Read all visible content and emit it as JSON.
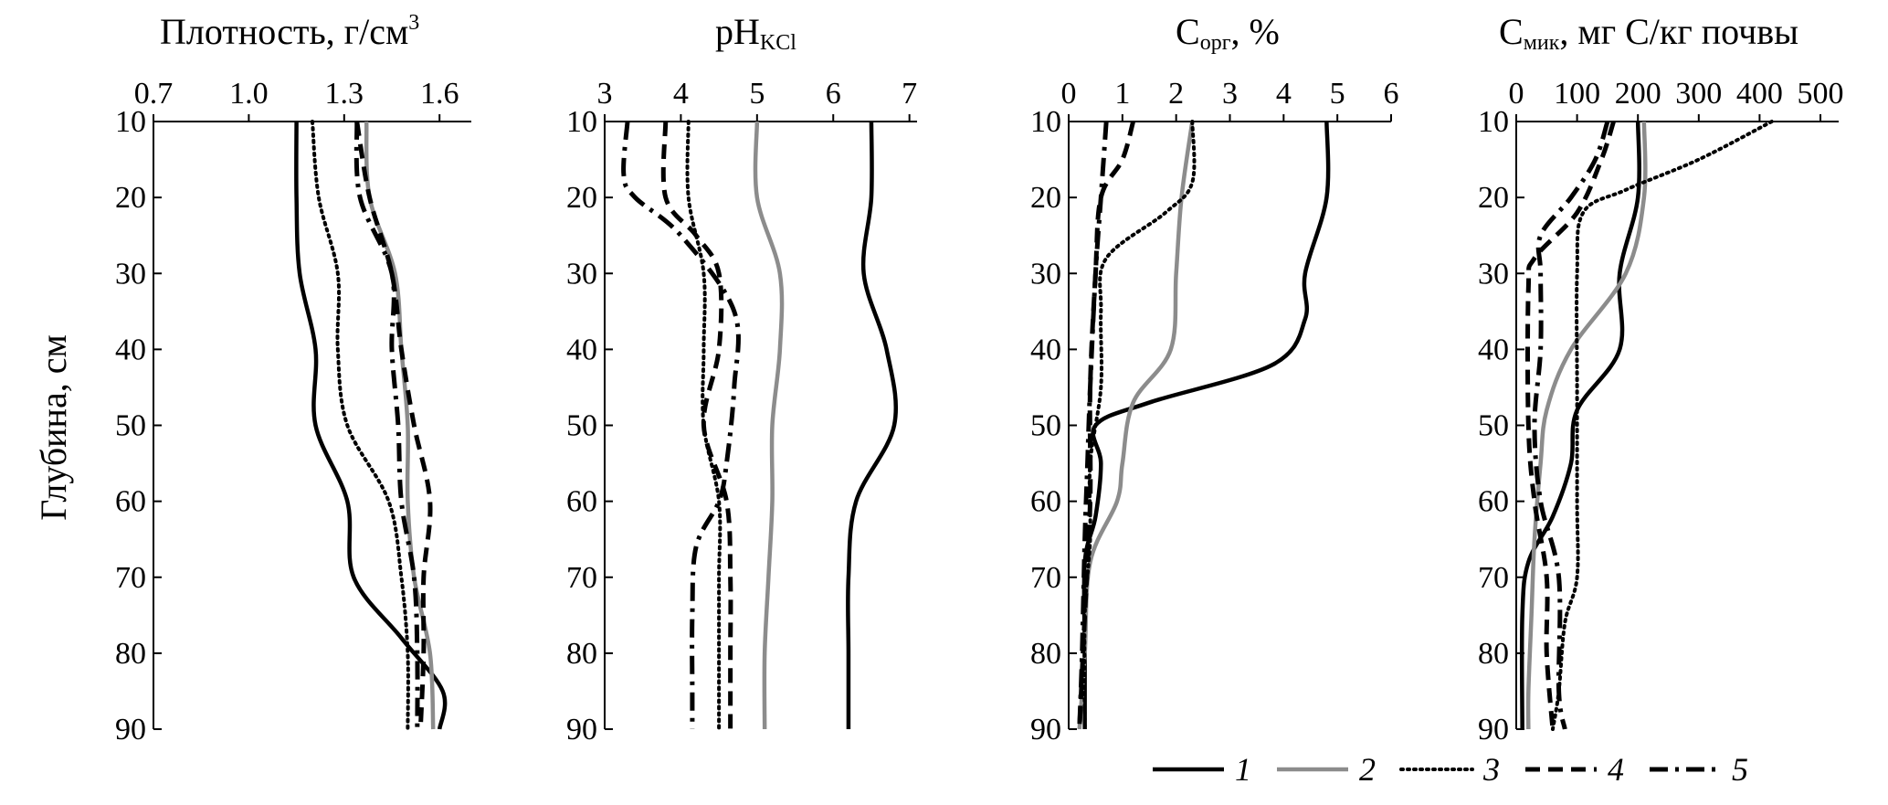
{
  "panels": [
    {
      "id": "density",
      "title_main": "Плотность, г/см",
      "title_sup": "3",
      "x_ticks": [
        "0.7",
        "1.0",
        "1.3",
        "1.6"
      ],
      "xlim": [
        0.7,
        1.7
      ],
      "tick_values": [
        0.7,
        1.0,
        1.3,
        1.6
      ]
    },
    {
      "id": "ph",
      "title_main": "pH",
      "title_sub": "KCl",
      "x_ticks": [
        "3",
        "4",
        "5",
        "6",
        "7"
      ],
      "xlim": [
        3,
        7.1
      ],
      "tick_values": [
        3,
        4,
        5,
        6,
        7
      ]
    },
    {
      "id": "corg",
      "title_main": "C",
      "title_sub": "орг",
      "title_after": ", %",
      "x_ticks": [
        "0",
        "1",
        "2",
        "3",
        "4",
        "5",
        "6"
      ],
      "xlim": [
        0,
        6
      ],
      "tick_values": [
        0,
        1,
        2,
        3,
        4,
        5,
        6
      ]
    },
    {
      "id": "cmic",
      "title_main": "C",
      "title_sub": "мик",
      "title_after": ", мг C/кг почвы",
      "x_ticks": [
        "0",
        "100",
        "200",
        "300",
        "400",
        "500"
      ],
      "xlim": [
        0,
        530
      ],
      "tick_values": [
        0,
        100,
        200,
        300,
        400,
        500
      ]
    }
  ],
  "y_axis": {
    "label": "Глубина, см",
    "ticks": [
      "10",
      "20",
      "30",
      "40",
      "50",
      "60",
      "70",
      "80",
      "90"
    ],
    "tick_values": [
      10,
      20,
      30,
      40,
      50,
      60,
      70,
      80,
      90
    ],
    "ylim": [
      10,
      90
    ],
    "inverted": true
  },
  "legend": [
    {
      "label": "1",
      "style": "solid",
      "color": "#000000"
    },
    {
      "label": "2",
      "style": "solid",
      "color": "#8c8c8c"
    },
    {
      "label": "3",
      "style": "dotted",
      "color": "#000000"
    },
    {
      "label": "4",
      "style": "dashed",
      "color": "#000000"
    },
    {
      "label": "5",
      "style": "dashdot",
      "color": "#000000"
    }
  ],
  "chart_data": [
    {
      "type": "line",
      "panel": "density",
      "xlabel": "Плотность, г/см3",
      "ylabel": "Глубина, см",
      "series": [
        {
          "name": "1",
          "points": [
            [
              1.15,
              10
            ],
            [
              1.15,
              20
            ],
            [
              1.16,
              30
            ],
            [
              1.21,
              40
            ],
            [
              1.21,
              50
            ],
            [
              1.31,
              60
            ],
            [
              1.33,
              70
            ],
            [
              1.48,
              78
            ],
            [
              1.61,
              85
            ],
            [
              1.6,
              90
            ]
          ]
        },
        {
          "name": "2",
          "points": [
            [
              1.37,
              10
            ],
            [
              1.38,
              20
            ],
            [
              1.46,
              30
            ],
            [
              1.48,
              40
            ],
            [
              1.5,
              50
            ],
            [
              1.5,
              60
            ],
            [
              1.52,
              70
            ],
            [
              1.57,
              80
            ],
            [
              1.58,
              90
            ]
          ]
        },
        {
          "name": "3",
          "points": [
            [
              1.2,
              10
            ],
            [
              1.22,
              20
            ],
            [
              1.28,
              30
            ],
            [
              1.28,
              40
            ],
            [
              1.31,
              50
            ],
            [
              1.44,
              60
            ],
            [
              1.48,
              70
            ],
            [
              1.5,
              80
            ],
            [
              1.5,
              90
            ]
          ]
        },
        {
          "name": "4",
          "points": [
            [
              1.34,
              10
            ],
            [
              1.38,
              20
            ],
            [
              1.45,
              30
            ],
            [
              1.48,
              40
            ],
            [
              1.52,
              50
            ],
            [
              1.57,
              60
            ],
            [
              1.55,
              70
            ],
            [
              1.55,
              80
            ],
            [
              1.54,
              90
            ]
          ]
        },
        {
          "name": "5",
          "points": [
            [
              1.34,
              10
            ],
            [
              1.35,
              20
            ],
            [
              1.45,
              30
            ],
            [
              1.45,
              40
            ],
            [
              1.47,
              50
            ],
            [
              1.48,
              60
            ],
            [
              1.52,
              70
            ],
            [
              1.53,
              80
            ],
            [
              1.53,
              90
            ]
          ]
        }
      ]
    },
    {
      "type": "line",
      "panel": "ph",
      "xlabel": "pHKCl",
      "ylabel": "Глубина, см",
      "series": [
        {
          "name": "1",
          "points": [
            [
              6.5,
              10
            ],
            [
              6.5,
              20
            ],
            [
              6.4,
              30
            ],
            [
              6.7,
              40
            ],
            [
              6.8,
              50
            ],
            [
              6.3,
              60
            ],
            [
              6.2,
              70
            ],
            [
              6.2,
              80
            ],
            [
              6.2,
              90
            ]
          ]
        },
        {
          "name": "2",
          "points": [
            [
              5.0,
              10
            ],
            [
              5.0,
              20
            ],
            [
              5.3,
              30
            ],
            [
              5.3,
              40
            ],
            [
              5.2,
              50
            ],
            [
              5.2,
              60
            ],
            [
              5.15,
              70
            ],
            [
              5.1,
              80
            ],
            [
              5.1,
              90
            ]
          ]
        },
        {
          "name": "3",
          "points": [
            [
              4.1,
              10
            ],
            [
              4.1,
              20
            ],
            [
              4.3,
              30
            ],
            [
              4.3,
              40
            ],
            [
              4.3,
              50
            ],
            [
              4.5,
              60
            ],
            [
              4.5,
              70
            ],
            [
              4.5,
              80
            ],
            [
              4.5,
              90
            ]
          ]
        },
        {
          "name": "4",
          "points": [
            [
              3.8,
              10
            ],
            [
              3.8,
              20
            ],
            [
              4.2,
              25
            ],
            [
              4.5,
              30
            ],
            [
              4.5,
              40
            ],
            [
              4.3,
              50
            ],
            [
              4.6,
              60
            ],
            [
              4.65,
              70
            ],
            [
              4.65,
              80
            ],
            [
              4.65,
              90
            ]
          ]
        },
        {
          "name": "5",
          "points": [
            [
              3.3,
              10
            ],
            [
              3.25,
              17
            ],
            [
              3.4,
              20
            ],
            [
              4.0,
              25
            ],
            [
              4.7,
              35
            ],
            [
              4.7,
              45
            ],
            [
              4.6,
              55
            ],
            [
              4.5,
              60
            ],
            [
              4.2,
              66
            ],
            [
              4.15,
              75
            ],
            [
              4.15,
              85
            ],
            [
              4.15,
              90
            ]
          ]
        }
      ]
    },
    {
      "type": "line",
      "panel": "corg",
      "xlabel": "Cорг, %",
      "ylabel": "Глубина, см",
      "series": [
        {
          "name": "1",
          "points": [
            [
              4.8,
              10
            ],
            [
              4.8,
              20
            ],
            [
              4.4,
              30
            ],
            [
              4.4,
              36
            ],
            [
              3.8,
              42
            ],
            [
              1.5,
              47
            ],
            [
              0.5,
              50
            ],
            [
              0.6,
              55
            ],
            [
              0.5,
              62
            ],
            [
              0.3,
              68
            ],
            [
              0.3,
              80
            ],
            [
              0.3,
              90
            ]
          ]
        },
        {
          "name": "2",
          "points": [
            [
              2.3,
              10
            ],
            [
              2.1,
              20
            ],
            [
              2.0,
              30
            ],
            [
              1.9,
              40
            ],
            [
              1.2,
              47
            ],
            [
              1.0,
              55
            ],
            [
              0.9,
              60
            ],
            [
              0.4,
              68
            ],
            [
              0.3,
              80
            ],
            [
              0.2,
              90
            ]
          ]
        },
        {
          "name": "3",
          "points": [
            [
              2.3,
              10
            ],
            [
              2.3,
              18
            ],
            [
              1.8,
              22
            ],
            [
              0.7,
              28
            ],
            [
              0.6,
              35
            ],
            [
              0.6,
              45
            ],
            [
              0.4,
              55
            ],
            [
              0.4,
              65
            ],
            [
              0.3,
              75
            ],
            [
              0.3,
              90
            ]
          ]
        },
        {
          "name": "4",
          "points": [
            [
              1.2,
              10
            ],
            [
              1.0,
              15
            ],
            [
              0.6,
              20
            ],
            [
              0.5,
              30
            ],
            [
              0.4,
              45
            ],
            [
              0.4,
              60
            ],
            [
              0.3,
              75
            ],
            [
              0.2,
              90
            ]
          ]
        },
        {
          "name": "5",
          "points": [
            [
              0.7,
              10
            ],
            [
              0.6,
              20
            ],
            [
              0.5,
              30
            ],
            [
              0.4,
              45
            ],
            [
              0.35,
              55
            ],
            [
              0.3,
              65
            ],
            [
              0.25,
              80
            ],
            [
              0.2,
              90
            ]
          ]
        }
      ]
    },
    {
      "type": "line",
      "panel": "cmic",
      "xlabel": "Cмик, мг C/кг почвы",
      "ylabel": "Глубина, см",
      "series": [
        {
          "name": "1",
          "points": [
            [
              200,
              10
            ],
            [
              200,
              20
            ],
            [
              170,
              30
            ],
            [
              170,
              40
            ],
            [
              100,
              48
            ],
            [
              90,
              55
            ],
            [
              60,
              62
            ],
            [
              20,
              68
            ],
            [
              10,
              75
            ],
            [
              10,
              90
            ]
          ]
        },
        {
          "name": "2",
          "points": [
            [
              210,
              10
            ],
            [
              210,
              20
            ],
            [
              180,
              30
            ],
            [
              90,
              40
            ],
            [
              50,
              48
            ],
            [
              40,
              55
            ],
            [
              30,
              65
            ],
            [
              25,
              75
            ],
            [
              20,
              85
            ],
            [
              20,
              90
            ]
          ]
        },
        {
          "name": "3",
          "points": [
            [
              420,
              10
            ],
            [
              300,
              15
            ],
            [
              180,
              19
            ],
            [
              110,
              22
            ],
            [
              100,
              30
            ],
            [
              100,
              45
            ],
            [
              100,
              60
            ],
            [
              100,
              70
            ],
            [
              80,
              76
            ],
            [
              70,
              85
            ],
            [
              60,
              90
            ]
          ]
        },
        {
          "name": "4",
          "points": [
            [
              160,
              10
            ],
            [
              140,
              15
            ],
            [
              100,
              22
            ],
            [
              30,
              28
            ],
            [
              20,
              32
            ],
            [
              20,
              50
            ],
            [
              30,
              60
            ],
            [
              50,
              70
            ],
            [
              50,
              80
            ],
            [
              60,
              90
            ]
          ]
        },
        {
          "name": "5",
          "points": [
            [
              150,
              10
            ],
            [
              130,
              15
            ],
            [
              90,
              20
            ],
            [
              40,
              25
            ],
            [
              40,
              30
            ],
            [
              40,
              40
            ],
            [
              30,
              50
            ],
            [
              40,
              60
            ],
            [
              70,
              70
            ],
            [
              70,
              85
            ],
            [
              80,
              90
            ]
          ]
        }
      ]
    }
  ]
}
